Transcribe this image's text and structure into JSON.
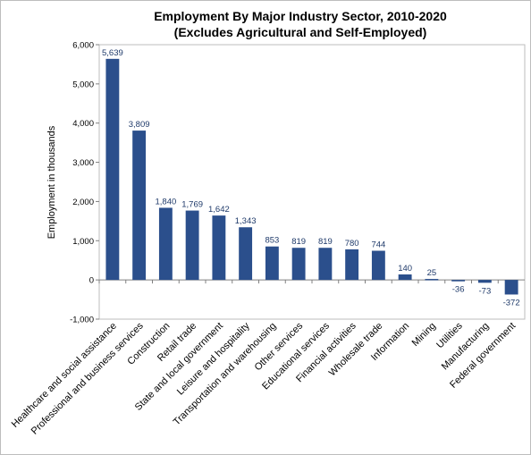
{
  "chart_data": {
    "type": "bar",
    "title": "Employment By Major Industry Sector, 2010-2020",
    "subtitle": "(Excludes Agricultural and Self-Employed)",
    "xlabel": "",
    "ylabel": "Employment in thousands",
    "ylim": [
      -1000,
      6000
    ],
    "yticks": [
      -1000,
      0,
      1000,
      2000,
      3000,
      4000,
      5000,
      6000
    ],
    "ytick_labels": [
      "-1,000",
      "0",
      "1,000",
      "2,000",
      "3,000",
      "4,000",
      "5,000",
      "6,000"
    ],
    "grid": false,
    "legend": "none",
    "bar_color": "#2b4f8c",
    "categories": [
      "Healthcare and social assistance",
      "Professional and business services",
      "Construction",
      "Retail trade",
      "State and local government",
      "Leisure and hospitality",
      "Transportation and warehousing",
      "Other services",
      "Educational services",
      "Financial activities",
      "Wholesale trade",
      "Information",
      "Mining",
      "Utilities",
      "Manufacturing",
      "Federal government"
    ],
    "values": [
      5639,
      3809,
      1840,
      1769,
      1642,
      1343,
      853,
      819,
      819,
      780,
      744,
      140,
      25,
      -36,
      -73,
      -372
    ],
    "value_labels": [
      "5,639",
      "3,809",
      "1,840",
      "1,769",
      "1,642",
      "1,343",
      "853",
      "819",
      "819",
      "780",
      "744",
      "140",
      "25",
      "-36",
      "-73",
      "-372"
    ]
  }
}
